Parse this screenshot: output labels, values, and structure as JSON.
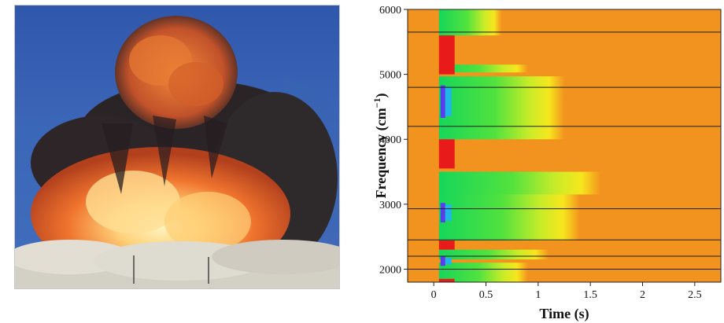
{
  "photo": {
    "icon": "explosion-fireball-photo",
    "colors": {
      "sky": "#3b62b5",
      "smoke": "#2a2326",
      "fire": "#f0742e",
      "core": "#ffe08a",
      "dust": "#d9d7cf"
    }
  },
  "chart_data": {
    "type": "heatmap",
    "xlabel": "Time (s)",
    "ylabel": "Frequency (cm",
    "ylabel_sup": "−1",
    "ylabel_close": ")",
    "xlim": [
      -0.25,
      2.75
    ],
    "ylim": [
      1800,
      6000
    ],
    "x_ticks": [
      0,
      0.5,
      1,
      1.5,
      2,
      2.5
    ],
    "x_tick_labels": [
      "0",
      "0.5",
      "1",
      "1.5",
      "2",
      "2.5"
    ],
    "y_ticks": [
      2000,
      3000,
      4000,
      5000,
      6000
    ],
    "y_tick_labels": [
      "2000",
      "3000",
      "4000",
      "5000",
      "6000"
    ],
    "background_color": "#f3931f",
    "reference_lines_y": [
      5650,
      4800,
      4200,
      2930,
      2450,
      2200,
      2000
    ],
    "bands": [
      {
        "y": [
          5600,
          6000
        ],
        "t_end": 0.65,
        "peak": "green"
      },
      {
        "y": [
          5030,
          5150
        ],
        "t_end": 0.9,
        "peak": "green"
      },
      {
        "y": [
          4000,
          4970
        ],
        "t_end": 1.25,
        "peak": "green"
      },
      {
        "y": [
          3150,
          3500
        ],
        "t_end": 1.6,
        "peak": "green"
      },
      {
        "y": [
          2440,
          3150
        ],
        "t_end": 1.4,
        "peak": "green"
      },
      {
        "y": [
          2150,
          2300
        ],
        "t_end": 1.1,
        "peak": "green"
      },
      {
        "y": [
          1800,
          2100
        ],
        "t_end": 0.9,
        "peak": "green"
      }
    ],
    "red_segments": [
      {
        "y": [
          5000,
          5600
        ]
      },
      {
        "y": [
          3550,
          4000
        ]
      },
      {
        "y": [
          2300,
          2440
        ]
      },
      {
        "y": [
          1800,
          1850
        ]
      }
    ],
    "blue_spots": [
      {
        "y": [
          4330,
          4830
        ]
      },
      {
        "y": [
          2720,
          3020
        ]
      },
      {
        "y": [
          2050,
          2200
        ]
      }
    ]
  }
}
